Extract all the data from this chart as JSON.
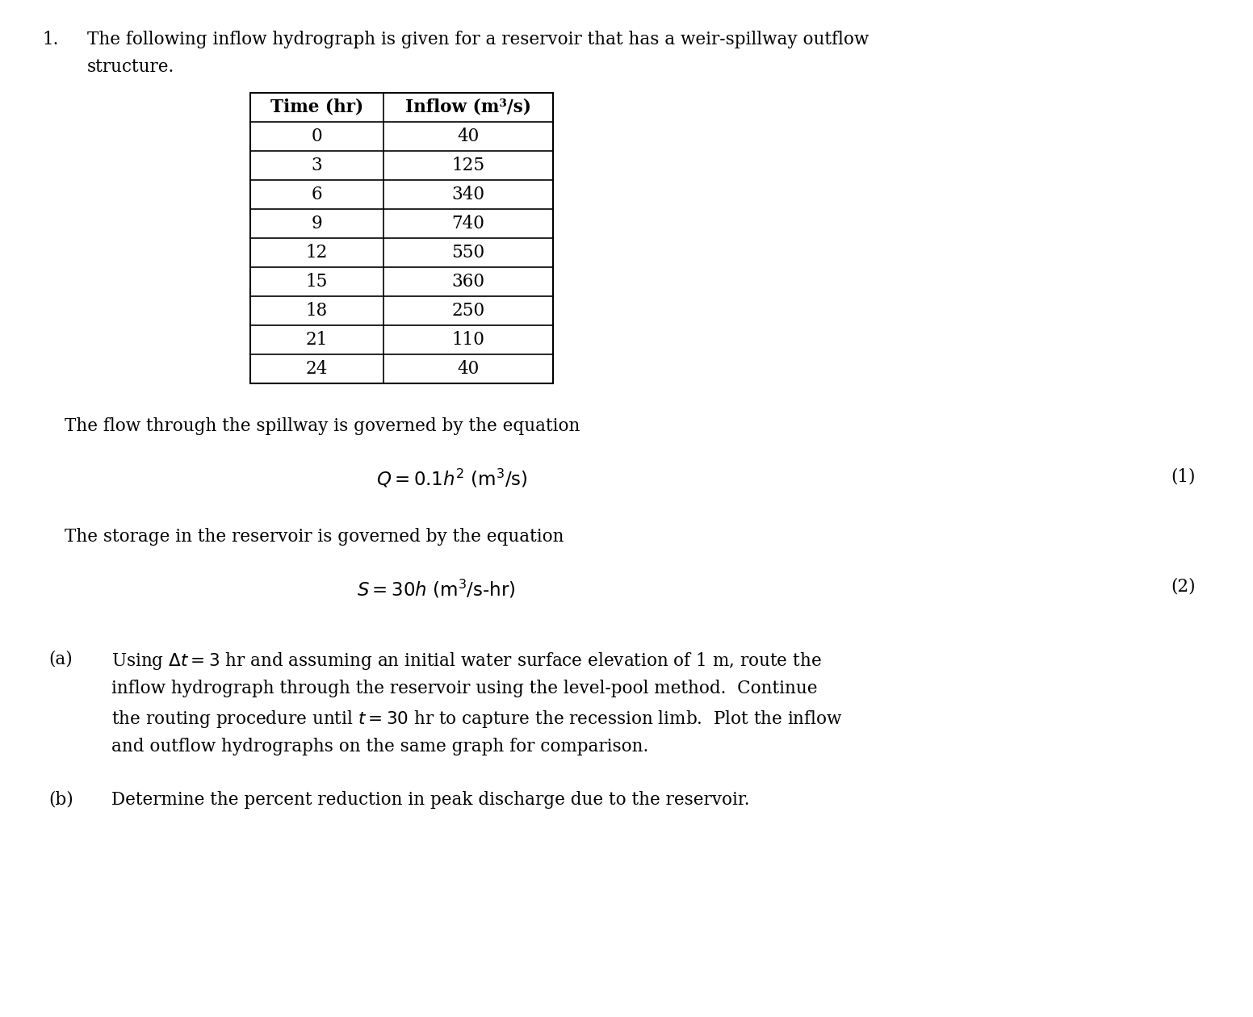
{
  "background_color": "#ffffff",
  "figsize": [
    15.52,
    12.6
  ],
  "dpi": 100,
  "problem_number": "1.",
  "intro_text_line1": "The following inflow hydrograph is given for a reservoir that has a weir-spillway outflow",
  "intro_text_line2": "structure.",
  "table_headers": [
    "Time (hr)",
    "Inflow (m³/s)"
  ],
  "table_data": [
    [
      "0",
      "40"
    ],
    [
      "3",
      "125"
    ],
    [
      "6",
      "340"
    ],
    [
      "9",
      "740"
    ],
    [
      "12",
      "550"
    ],
    [
      "15",
      "360"
    ],
    [
      "18",
      "250"
    ],
    [
      "21",
      "110"
    ],
    [
      "24",
      "40"
    ]
  ],
  "spillway_text": "The flow through the spillway is governed by the equation",
  "equation1_number": "(1)",
  "storage_text": "The storage in the reservoir is governed by the equation",
  "equation2_number": "(2)",
  "part_a_label": "(a)",
  "part_b_label": "(b)",
  "part_b_text": "Determine the percent reduction in peak discharge due to the reservoir.",
  "font_size_body": 15.5,
  "font_size_table": 15.5,
  "font_size_eq": 16.5
}
